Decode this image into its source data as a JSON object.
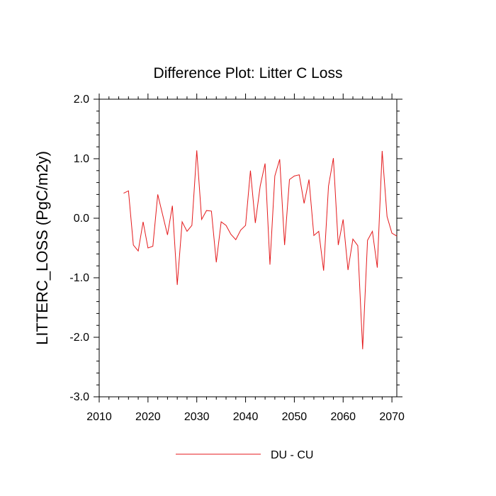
{
  "chart_data": {
    "type": "line",
    "title": "Difference Plot: Litter C Loss",
    "xlabel": "",
    "ylabel": "LITTERC_LOSS  (PgC/m2y)",
    "xlim": [
      2010,
      2071
    ],
    "ylim": [
      -3.0,
      2.0
    ],
    "x_ticks": [
      2010,
      2020,
      2030,
      2040,
      2050,
      2060,
      2070
    ],
    "y_ticks": [
      -3.0,
      -2.0,
      -1.0,
      0.0,
      1.0,
      2.0
    ],
    "y_tick_labels": [
      "-3.0",
      "-2.0",
      "-1.0",
      "0.0",
      "1.0",
      "2.0"
    ],
    "x_tick_labels": [
      "2010",
      "2020",
      "2030",
      "2040",
      "2050",
      "2060",
      "2070"
    ],
    "grid": false,
    "legend_position": "bottom-center",
    "series": [
      {
        "name": "DU - CU",
        "color": "#e41a1c",
        "x": [
          2015,
          2016,
          2017,
          2018,
          2019,
          2020,
          2021,
          2022,
          2023,
          2024,
          2025,
          2026,
          2027,
          2028,
          2029,
          2030,
          2031,
          2032,
          2033,
          2034,
          2035,
          2036,
          2037,
          2038,
          2039,
          2040,
          2041,
          2042,
          2043,
          2044,
          2045,
          2046,
          2047,
          2048,
          2049,
          2050,
          2051,
          2052,
          2053,
          2054,
          2055,
          2056,
          2057,
          2058,
          2059,
          2060,
          2061,
          2062,
          2063,
          2064,
          2065,
          2066,
          2067,
          2068,
          2069,
          2070,
          2071
        ],
        "y": [
          0.42,
          0.46,
          -0.45,
          -0.55,
          -0.06,
          -0.5,
          -0.47,
          0.4,
          0.06,
          -0.28,
          0.21,
          -1.12,
          -0.06,
          -0.22,
          -0.12,
          1.14,
          -0.02,
          0.13,
          0.12,
          -0.74,
          -0.06,
          -0.12,
          -0.27,
          -0.36,
          -0.2,
          -0.12,
          0.8,
          -0.08,
          0.54,
          0.92,
          -0.78,
          0.71,
          0.99,
          -0.45,
          0.65,
          0.71,
          0.73,
          0.25,
          0.65,
          -0.29,
          -0.22,
          -0.88,
          0.54,
          1.01,
          -0.45,
          -0.02,
          -0.87,
          -0.35,
          -0.46,
          -2.2,
          -0.37,
          -0.22,
          -0.83,
          1.13,
          0.03,
          -0.25,
          -0.3
        ]
      }
    ]
  }
}
